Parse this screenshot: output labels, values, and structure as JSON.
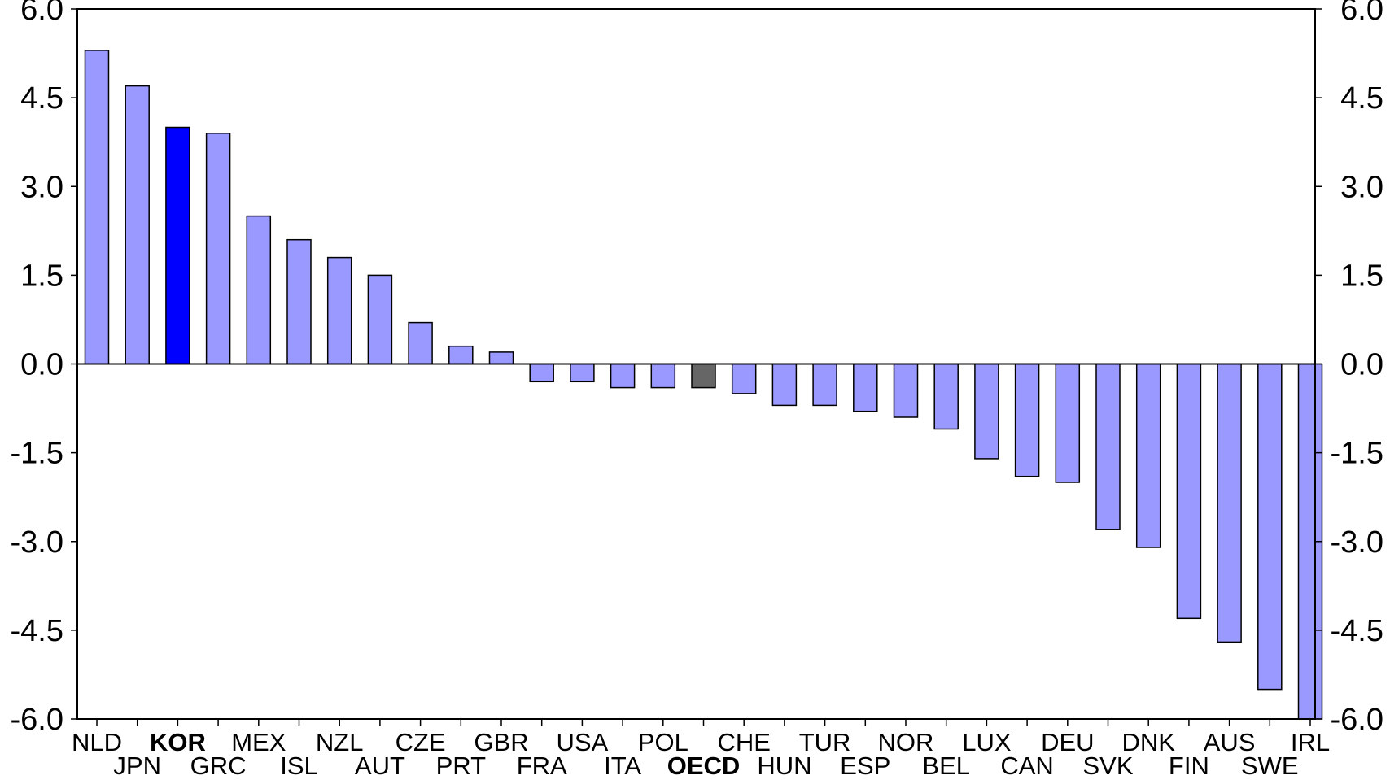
{
  "chart_data": {
    "type": "bar",
    "title": "",
    "xlabel": "",
    "ylabel": "",
    "ylim": [
      -6.0,
      6.0
    ],
    "yticks": [
      "6.0",
      "4.5",
      "3.0",
      "1.5",
      "0.0",
      "-1.5",
      "-3.0",
      "-4.5",
      "-6.0"
    ],
    "ytick_values": [
      6.0,
      4.5,
      3.0,
      1.5,
      0.0,
      -1.5,
      -3.0,
      -4.5,
      -6.0
    ],
    "dual_y_axis": true,
    "grid": false,
    "legend": "none",
    "categories": [
      "NLD",
      "JPN",
      "KOR",
      "GRC",
      "MEX",
      "ISL",
      "NZL",
      "AUT",
      "CZE",
      "PRT",
      "GBR",
      "FRA",
      "USA",
      "ITA",
      "POL",
      "OECD",
      "CHE",
      "HUN",
      "TUR",
      "ESP",
      "NOR",
      "BEL",
      "LUX",
      "CAN",
      "DEU",
      "SVK",
      "DNK",
      "FIN",
      "AUS",
      "SWE",
      "IRL"
    ],
    "values": [
      5.3,
      4.7,
      4.0,
      3.9,
      2.5,
      2.1,
      1.8,
      1.5,
      0.7,
      0.3,
      0.2,
      -0.3,
      -0.3,
      -0.4,
      -0.4,
      -0.4,
      -0.5,
      -0.7,
      -0.7,
      -0.8,
      -0.9,
      -1.1,
      -1.6,
      -1.9,
      -2.0,
      -2.8,
      -3.1,
      -4.3,
      -4.7,
      -5.5,
      -6.0
    ],
    "highlight": {
      "KOR": "#0000ff",
      "OECD": "#666666"
    },
    "bold_categories": [
      "KOR",
      "OECD"
    ],
    "colors": {
      "default_bar": "#9999ff",
      "outline": "#000000"
    }
  }
}
